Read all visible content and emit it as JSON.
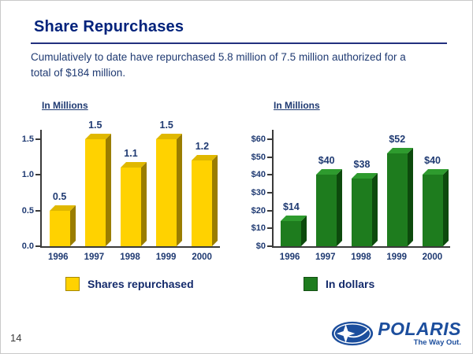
{
  "slide": {
    "title": "Share Repurchases",
    "subtitle": "Cumulatively to date have repurchased 5.8 million of 7.5 million authorized for a total of $184 million.",
    "page_number": "14"
  },
  "logo": {
    "brand": "POLARIS",
    "tagline": "The Way Out."
  },
  "colors": {
    "title_navy": "#00227B",
    "body_navy": "#1F3A72",
    "rule_blue": "#22307E",
    "logo_blue": "#1C4E9D",
    "shares_yellow": "#FFD200",
    "dollars_green": "#1E7C1E"
  },
  "chart_data": [
    {
      "type": "bar",
      "title": "In Millions",
      "legend": "Shares repurchased",
      "legend_position": "bottom",
      "categories": [
        "1996",
        "1997",
        "1998",
        "1999",
        "2000"
      ],
      "values": [
        0.5,
        1.5,
        1.1,
        1.5,
        1.2
      ],
      "labels": [
        "0.5",
        "1.5",
        "1.1",
        "1.5",
        "1.2"
      ],
      "yticks": [
        "0.0",
        "0.5",
        "1.0",
        "1.5"
      ],
      "ytick_values": [
        0,
        0.5,
        1.0,
        1.5
      ],
      "ylim": [
        0,
        1.5
      ],
      "xlabel": "",
      "ylabel": "In Millions",
      "grid": false,
      "bar_color": "#FFD200",
      "bar_side_color": "#9A7D00",
      "bar_top_color": "#E0B800"
    },
    {
      "type": "bar",
      "title": "In Millions",
      "legend": "In dollars",
      "legend_position": "bottom",
      "categories": [
        "1996",
        "1997",
        "1998",
        "1999",
        "2000"
      ],
      "values": [
        14,
        40,
        38,
        52,
        40
      ],
      "labels": [
        "$14",
        "$40",
        "$38",
        "$52",
        "$40"
      ],
      "yticks": [
        "$0",
        "$10",
        "$20",
        "$30",
        "$40",
        "$50",
        "$60"
      ],
      "ytick_values": [
        0,
        10,
        20,
        30,
        40,
        50,
        60
      ],
      "ylim": [
        0,
        60
      ],
      "xlabel": "",
      "ylabel": "In Millions",
      "grid": false,
      "bar_color": "#1E7C1E",
      "bar_side_color": "#0D4A0D",
      "bar_top_color": "#2E9B2E"
    }
  ]
}
